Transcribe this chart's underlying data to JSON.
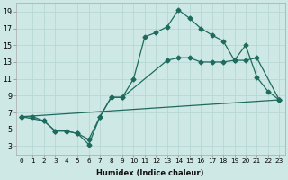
{
  "xlabel": "Humidex (Indice chaleur)",
  "bg_color": "#cde8e5",
  "grid_color": "#b8d8d5",
  "line_color": "#1e6b5e",
  "xlim": [
    -0.5,
    23.5
  ],
  "ylim": [
    2,
    20
  ],
  "xticks": [
    0,
    1,
    2,
    3,
    4,
    5,
    6,
    7,
    8,
    9,
    10,
    11,
    12,
    13,
    14,
    15,
    16,
    17,
    18,
    19,
    20,
    21,
    22,
    23
  ],
  "yticks": [
    3,
    5,
    7,
    9,
    11,
    13,
    15,
    17,
    19
  ],
  "curve1_x": [
    0,
    1,
    2,
    3,
    4,
    5,
    6,
    7,
    8,
    9,
    10,
    11,
    12,
    13,
    14,
    15,
    16,
    17,
    18,
    19,
    20,
    21,
    22,
    23
  ],
  "curve1_y": [
    6.5,
    6.5,
    6.0,
    4.8,
    4.8,
    4.5,
    3.2,
    6.5,
    8.8,
    8.8,
    11.0,
    16.0,
    16.5,
    17.2,
    19.2,
    18.2,
    17.0,
    16.2,
    15.5,
    13.2,
    15.0,
    11.2,
    9.5,
    8.5
  ],
  "curve2_x": [
    0,
    2,
    3,
    4,
    5,
    6,
    7,
    8,
    9,
    13,
    14,
    15,
    16,
    17,
    18,
    19,
    20,
    21,
    23
  ],
  "curve2_y": [
    6.5,
    6.0,
    4.8,
    4.8,
    4.5,
    3.8,
    6.5,
    8.8,
    8.8,
    13.2,
    13.5,
    13.5,
    13.0,
    13.0,
    13.0,
    13.2,
    13.2,
    13.5,
    8.5
  ],
  "curve3_x": [
    0,
    23
  ],
  "curve3_y": [
    6.5,
    8.5
  ],
  "markersize": 2.5,
  "linewidth": 0.9
}
